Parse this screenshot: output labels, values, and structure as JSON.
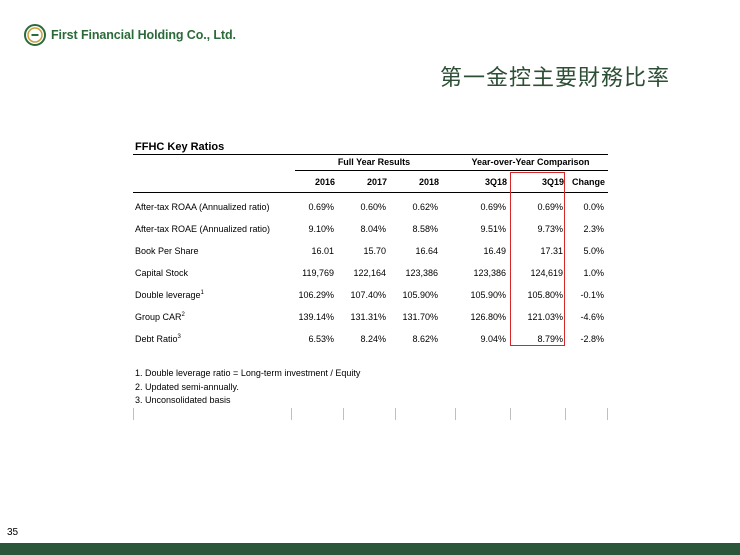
{
  "company": {
    "name": "First Financial Holding Co., Ltd."
  },
  "page_title": "第一金控主要財務比率",
  "table": {
    "title": "FFHC Key Ratios",
    "group_headers": [
      "Full Year Results",
      "Year-over-Year Comparison"
    ],
    "columns": [
      "2016",
      "2017",
      "2018",
      "3Q18",
      "3Q19",
      "Change"
    ],
    "rows": [
      {
        "label": "After-tax ROAA (Annualized ratio)",
        "sup": "",
        "values": [
          "0.69%",
          "0.60%",
          "0.62%",
          "0.69%",
          "0.69%",
          "0.0%"
        ]
      },
      {
        "label": "After-tax ROAE (Annualized ratio)",
        "sup": "",
        "values": [
          "9.10%",
          "8.04%",
          "8.58%",
          "9.51%",
          "9.73%",
          "2.3%"
        ]
      },
      {
        "label": "Book Per Share",
        "sup": "",
        "values": [
          "16.01",
          "15.70",
          "16.64",
          "16.49",
          "17.31",
          "5.0%"
        ]
      },
      {
        "label": "Capital Stock",
        "sup": "",
        "values": [
          "119,769",
          "122,164",
          "123,386",
          "123,386",
          "124,619",
          "1.0%"
        ]
      },
      {
        "label": "Double leverage",
        "sup": "1",
        "values": [
          "106.29%",
          "107.40%",
          "105.90%",
          "105.90%",
          "105.80%",
          "-0.1%"
        ]
      },
      {
        "label": "Group CAR",
        "sup": "2",
        "values": [
          "139.14%",
          "131.31%",
          "131.70%",
          "126.80%",
          "121.03%",
          "-4.6%"
        ]
      },
      {
        "label": "Debt Ratio",
        "sup": "3",
        "values": [
          "6.53%",
          "8.24%",
          "8.62%",
          "9.04%",
          "8.79%",
          "-2.8%"
        ]
      }
    ],
    "notes": [
      "1. Double leverage ratio = Long-term investment / Equity",
      "2. Updated semi-annually.",
      "3. Unconsolidated basis"
    ]
  },
  "highlight_color": "#d62828",
  "brand_color": "#2c5639",
  "page_number": "35"
}
